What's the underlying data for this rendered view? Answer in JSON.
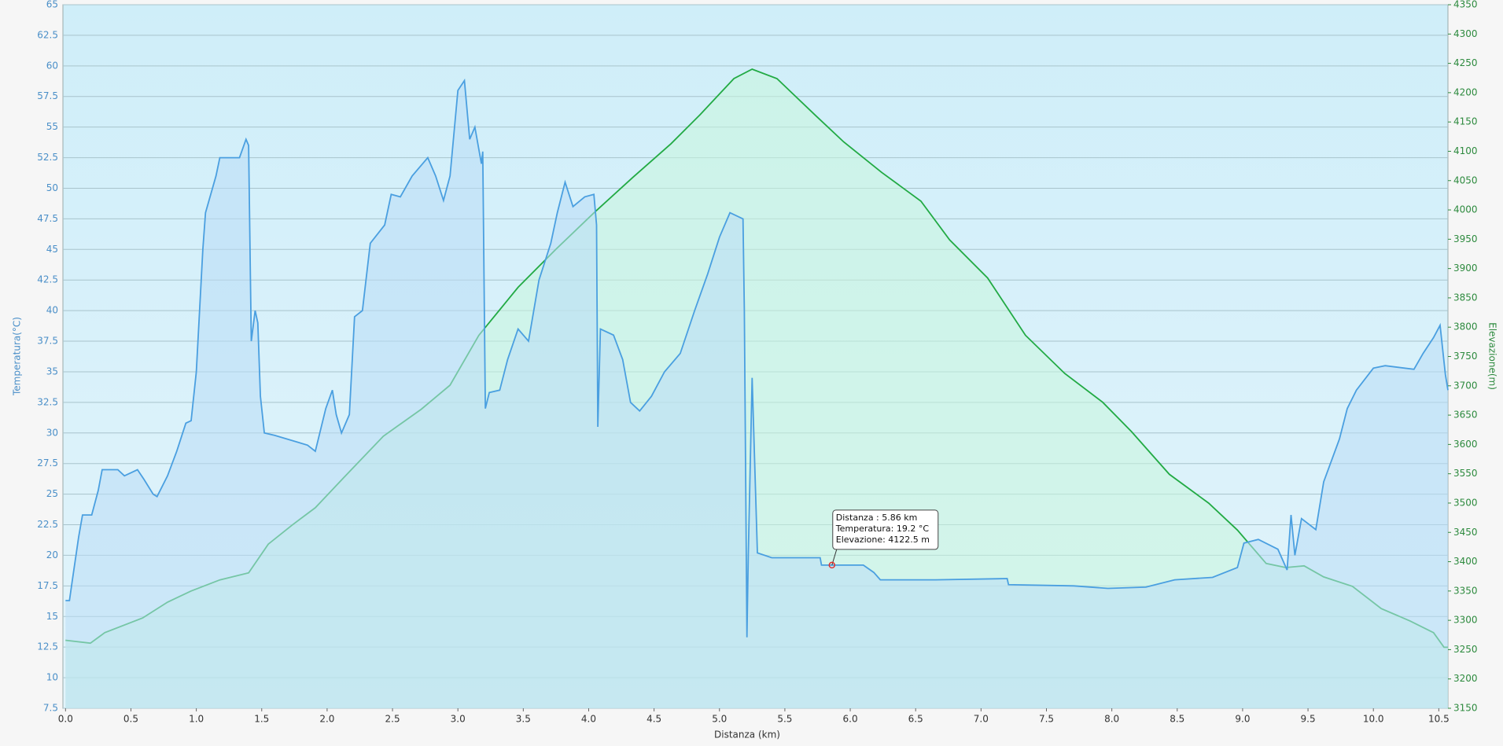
{
  "chart_data": {
    "type": "area",
    "xlabel": "Distanza  (km)",
    "ylabel": "Temperatura(°C)",
    "y2label": "Elevazione(m)",
    "xlim": [
      -0.02,
      10.57
    ],
    "xticks": [
      {
        "value": 0,
        "label": "0.0"
      },
      0.5,
      {
        "value": 1,
        "label": "1.0"
      },
      1.5,
      {
        "value": 2,
        "label": "2.0"
      },
      2.5,
      {
        "value": 3,
        "label": "3.0"
      },
      3.5,
      {
        "value": 4,
        "label": "4.0"
      },
      4.5,
      {
        "value": 5,
        "label": "5.0"
      },
      5.5,
      {
        "value": 6,
        "label": "6.0"
      },
      6.5,
      {
        "value": 7,
        "label": "7.0"
      },
      7.5,
      {
        "value": 8,
        "label": "8.0"
      },
      8.5,
      {
        "value": 9,
        "label": "9.0"
      },
      9.5,
      {
        "value": 10,
        "label": "10.0"
      },
      10.5
    ],
    "ylim": [
      7.5,
      65
    ],
    "yticks": [
      7.5,
      10,
      12.5,
      15,
      17.5,
      20,
      22.5,
      25,
      27.5,
      30,
      32.5,
      35,
      37.5,
      40,
      42.5,
      45,
      47.5,
      50,
      52.5,
      55,
      57.5,
      60,
      62.5,
      65
    ],
    "y2lim": [
      3150,
      4350
    ],
    "y2ticks": [
      3150,
      3200,
      3250,
      3300,
      3350,
      3400,
      3450,
      3500,
      3550,
      3600,
      3650,
      3700,
      3750,
      3800,
      3850,
      3900,
      3950,
      4000,
      4050,
      4100,
      4150,
      4200,
      4250,
      4300,
      4350
    ],
    "grid": true,
    "series": [
      {
        "color": "#22aa44",
        "fill": "#c8f5dc",
        "axis": "y2",
        "x": [
          0,
          0.19,
          0.3,
          0.59,
          0.78,
          0.96,
          1.18,
          1.4,
          1.55,
          1.73,
          1.91,
          2.13,
          2.43,
          2.72,
          2.94,
          3.16,
          3.46,
          3.75,
          4.04,
          4.34,
          4.63,
          4.85,
          5.11,
          5.25,
          5.44,
          5.73,
          5.95,
          6.24,
          6.54,
          6.76,
          7.05,
          7.34,
          7.64,
          7.93,
          8.15,
          8.44,
          8.74,
          8.96,
          9.18,
          9.33,
          9.47,
          9.62,
          9.84,
          10.06,
          10.28,
          10.46,
          10.54,
          10.57
        ],
        "values": [
          3266,
          3261,
          3279,
          3304,
          3331,
          3350,
          3369,
          3381,
          3430,
          3462,
          3492,
          3544,
          3614,
          3660,
          3701,
          3786,
          3868,
          3933,
          3995,
          4056,
          4113,
          4162,
          4224,
          4240,
          4224,
          4162,
          4116,
          4064,
          4015,
          3949,
          3884,
          3786,
          3721,
          3672,
          3622,
          3549,
          3500,
          3454,
          3397,
          3390,
          3393,
          3374,
          3358,
          3320,
          3299,
          3279,
          3254,
          3254
        ]
      },
      {
        "color": "#4a9fe0",
        "fill": "#b9dcf6",
        "x": [
          0,
          0.03,
          0.05,
          0.1,
          0.13,
          0.2,
          0.25,
          0.28,
          0.4,
          0.45,
          0.55,
          0.6,
          0.67,
          0.7,
          0.78,
          0.85,
          0.92,
          0.96,
          1.0,
          1.05,
          1.07,
          1.15,
          1.18,
          1.33,
          1.38,
          1.4,
          1.42,
          1.45,
          1.47,
          1.49,
          1.52,
          1.6,
          1.85,
          1.91,
          1.99,
          2.04,
          2.07,
          2.11,
          2.17,
          2.21,
          2.27,
          2.33,
          2.44,
          2.49,
          2.56,
          2.65,
          2.77,
          2.83,
          2.89,
          2.94,
          3.0,
          3.05,
          3.09,
          3.13,
          3.18,
          3.19,
          3.21,
          3.24,
          3.32,
          3.38,
          3.46,
          3.54,
          3.62,
          3.71,
          3.76,
          3.82,
          3.88,
          3.97,
          4.04,
          4.06,
          4.07,
          4.09,
          4.19,
          4.26,
          4.32,
          4.39,
          4.48,
          4.58,
          4.7,
          4.81,
          4.91,
          5.0,
          5.08,
          5.18,
          5.19,
          5.21,
          5.22,
          5.25,
          5.29,
          5.4,
          5.77,
          5.78,
          6.1,
          6.18,
          6.23,
          6.65,
          7.2,
          7.21,
          7.71,
          7.97,
          8.26,
          8.48,
          8.77,
          8.96,
          9.01,
          9.12,
          9.27,
          9.34,
          9.37,
          9.4,
          9.45,
          9.56,
          9.62,
          9.74,
          9.8,
          9.87,
          10.0,
          10.09,
          10.31,
          10.38,
          10.46,
          10.51,
          10.55,
          10.57
        ],
        "values": [
          16.3,
          16.3,
          17.8,
          21.5,
          23.3,
          23.3,
          25.3,
          27,
          27,
          26.5,
          27,
          26.2,
          25,
          24.8,
          26.5,
          28.5,
          30.8,
          31,
          35,
          45,
          48,
          51,
          52.5,
          52.5,
          54,
          53.5,
          37.5,
          40,
          39,
          33,
          30,
          29.8,
          29,
          28.5,
          32,
          33.5,
          31.5,
          30,
          31.5,
          39.5,
          40,
          45.5,
          47,
          49.5,
          49.3,
          51,
          52.5,
          51,
          49,
          51,
          58,
          58.8,
          54,
          55,
          52,
          53,
          32,
          33.3,
          33.5,
          36,
          38.5,
          37.5,
          42.5,
          45.5,
          48,
          50.5,
          48.5,
          49.3,
          49.5,
          47,
          30.5,
          38.5,
          38,
          36,
          32.5,
          31.8,
          33,
          35,
          36.5,
          40,
          43,
          46,
          48,
          47.5,
          40,
          13.3,
          20,
          34.5,
          20.2,
          19.8,
          19.8,
          19.2,
          19.2,
          18.6,
          18,
          18,
          18.1,
          17.6,
          17.5,
          17.3,
          17.4,
          18,
          18.2,
          19,
          21,
          21.3,
          20.5,
          18.8,
          23.3,
          20,
          23,
          22.1,
          26,
          29.5,
          32,
          33.5,
          35.3,
          35.5,
          35.2,
          36.5,
          37.8,
          38.8,
          34.8,
          33.5
        ]
      }
    ],
    "annotation": {
      "x": 5.86,
      "y": 19.2,
      "lines": [
        "Distanza  : 5.86 km",
        "Temperatura: 19.2 °C",
        "Elevazione: 4122.5 m"
      ]
    }
  }
}
